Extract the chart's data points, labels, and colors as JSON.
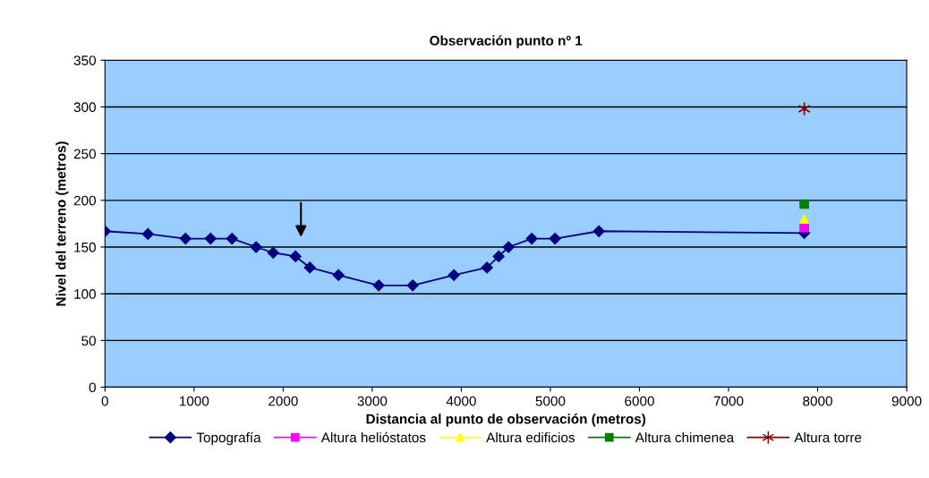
{
  "chart_data": {
    "type": "line",
    "title": "Observación punto nº 1",
    "xlabel": "Distancia al punto de observación (metros)",
    "ylabel": "Nivel del terreno (metros)",
    "xlim": [
      0,
      9000
    ],
    "xticks": [
      0,
      1000,
      2000,
      3000,
      4000,
      5000,
      6000,
      7000,
      8000,
      9000
    ],
    "ylim": [
      0,
      350
    ],
    "yticks": [
      0,
      50,
      100,
      150,
      200,
      250,
      300,
      350
    ],
    "grid": "y",
    "legend": "bottom",
    "series": [
      {
        "name": "Topografía",
        "color": "#000080",
        "marker": "diamond",
        "x": [
          0,
          482,
          904,
          1185,
          1426,
          1697,
          1888,
          2139,
          2300,
          2621,
          3073,
          3455,
          3917,
          4289,
          4420,
          4530,
          4791,
          5052,
          5545,
          7850
        ],
        "values": [
          167,
          164,
          159,
          159,
          159,
          150,
          144,
          140,
          128,
          120,
          109,
          109,
          120,
          128,
          140,
          150,
          159,
          159,
          167,
          165
        ]
      },
      {
        "name": "Altura helióstatos",
        "color": "#ff00ff",
        "type": "scatter",
        "marker": "square",
        "x": [
          7850
        ],
        "values": [
          171
        ]
      },
      {
        "name": "Altura edificios",
        "color": "#ffff00",
        "type": "scatter",
        "marker": "triangle",
        "x": [
          7850
        ],
        "values": [
          180
        ]
      },
      {
        "name": "Altura chimenea",
        "color": "#008000",
        "type": "scatter",
        "marker": "square",
        "x": [
          7850
        ],
        "values": [
          196
        ]
      },
      {
        "name": "Altura torre",
        "color": "#800000",
        "type": "scatter",
        "marker": "cross",
        "x": [
          7850
        ],
        "values": [
          298
        ]
      }
    ]
  }
}
